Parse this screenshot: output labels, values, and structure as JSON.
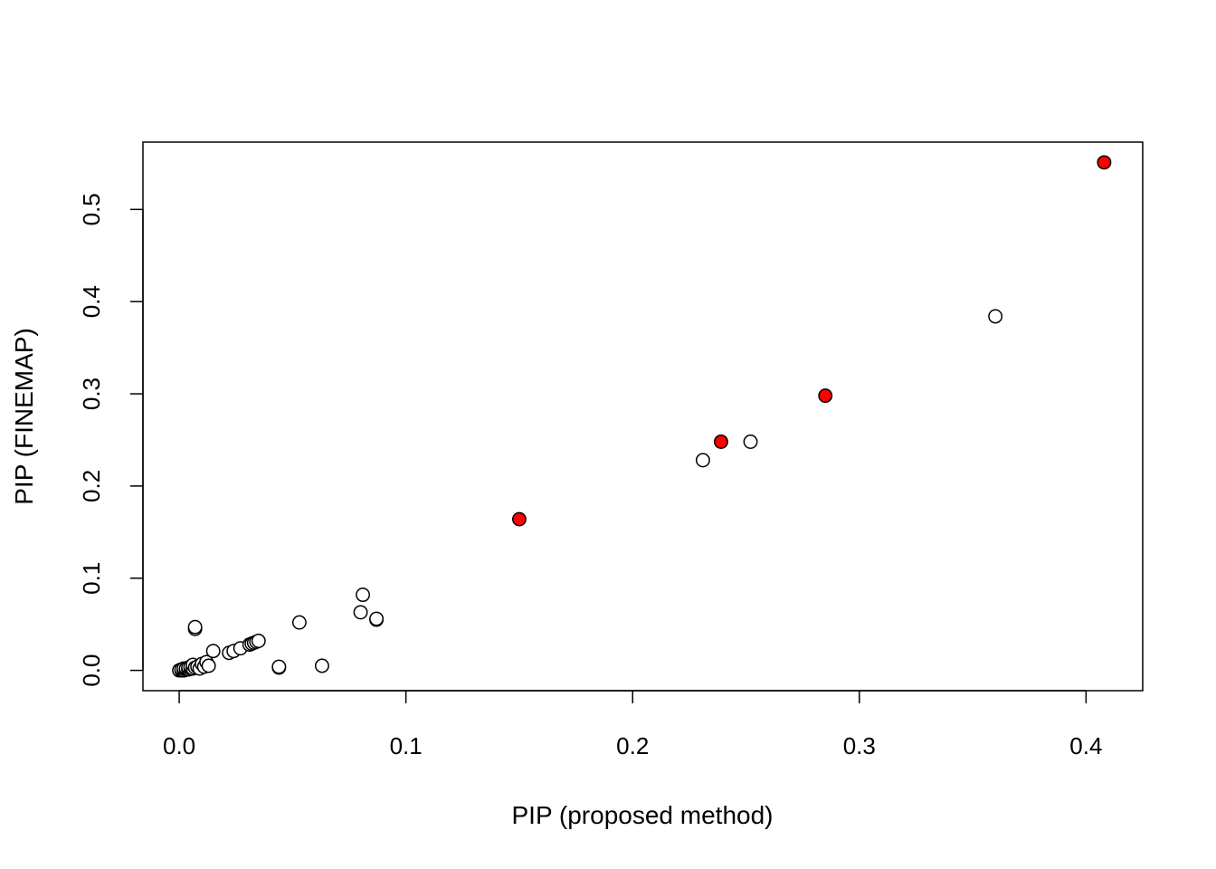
{
  "chart_data": {
    "type": "scatter",
    "title": "",
    "xlabel": "PIP (proposed method)",
    "ylabel": "PIP (FINEMAP)",
    "xlim": [
      -0.016,
      0.425
    ],
    "ylim": [
      -0.022,
      0.573
    ],
    "x_ticks": [
      {
        "value": 0.0,
        "label": "0.0"
      },
      {
        "value": 0.1,
        "label": "0.1"
      },
      {
        "value": 0.2,
        "label": "0.2"
      },
      {
        "value": 0.3,
        "label": "0.3"
      },
      {
        "value": 0.4,
        "label": "0.4"
      }
    ],
    "y_ticks": [
      {
        "value": 0.0,
        "label": "0.0"
      },
      {
        "value": 0.1,
        "label": "0.1"
      },
      {
        "value": 0.2,
        "label": "0.2"
      },
      {
        "value": 0.3,
        "label": "0.3"
      },
      {
        "value": 0.4,
        "label": "0.4"
      },
      {
        "value": 0.5,
        "label": "0.5"
      }
    ],
    "grid": false,
    "colors": {
      "open": "#ffffff",
      "highlight": "#ff0000",
      "stroke": "#000000"
    },
    "series": [
      {
        "marker": "open-circle",
        "x": [
          0.0,
          0.001,
          0.001,
          0.002,
          0.002,
          0.003,
          0.003,
          0.004,
          0.004,
          0.005,
          0.005,
          0.006,
          0.006,
          0.007,
          0.008,
          0.009,
          0.01,
          0.011,
          0.012,
          0.013,
          0.007,
          0.007,
          0.015,
          0.022,
          0.024,
          0.027,
          0.031,
          0.032,
          0.033,
          0.034,
          0.035,
          0.044,
          0.044,
          0.053,
          0.063,
          0.08,
          0.081,
          0.087,
          0.087,
          0.231,
          0.252,
          0.36
        ],
        "y": [
          0.0,
          0.0,
          0.001,
          0.0,
          0.002,
          0.001,
          0.002,
          0.001,
          0.003,
          0.002,
          0.004,
          0.002,
          0.006,
          0.003,
          0.004,
          0.002,
          0.007,
          0.004,
          0.009,
          0.005,
          0.045,
          0.047,
          0.021,
          0.019,
          0.021,
          0.024,
          0.028,
          0.029,
          0.03,
          0.031,
          0.032,
          0.003,
          0.004,
          0.052,
          0.005,
          0.063,
          0.082,
          0.055,
          0.056,
          0.228,
          0.248,
          0.384
        ]
      },
      {
        "marker": "filled-circle",
        "x": [
          0.15,
          0.239,
          0.285,
          0.408
        ],
        "y": [
          0.164,
          0.248,
          0.298,
          0.551
        ]
      }
    ]
  }
}
